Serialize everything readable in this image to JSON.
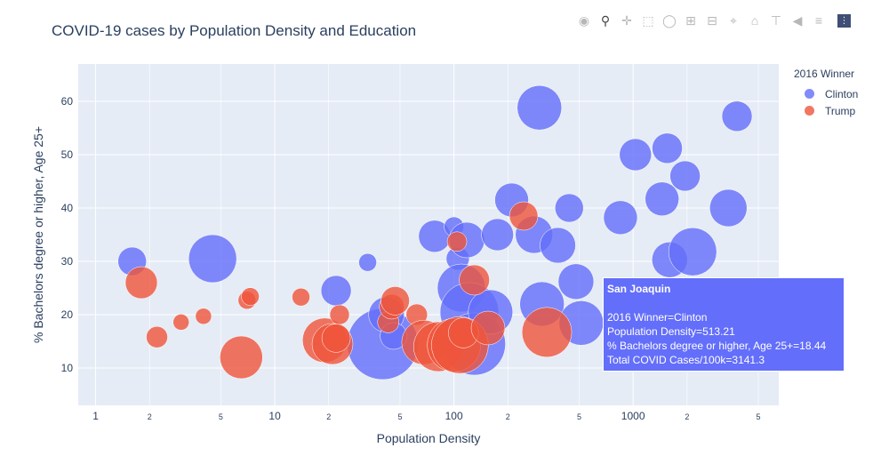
{
  "chart_data": {
    "type": "scatter",
    "title": "COVID-19 cases by Population Density and Education",
    "xlabel": "Population Density",
    "ylabel": "% Bachelors degree or higher, Age 25+",
    "x_scale": "log",
    "xlim": [
      0.8,
      6500
    ],
    "ylim": [
      3,
      67
    ],
    "x_ticks": [
      {
        "v": 1,
        "t": "1"
      },
      {
        "v": 2,
        "t": "2"
      },
      {
        "v": 5,
        "t": "5"
      },
      {
        "v": 10,
        "t": "10"
      },
      {
        "v": 20,
        "t": "2"
      },
      {
        "v": 50,
        "t": "5"
      },
      {
        "v": 100,
        "t": "100"
      },
      {
        "v": 200,
        "t": "2"
      },
      {
        "v": 500,
        "t": "5"
      },
      {
        "v": 1000,
        "t": "1000"
      },
      {
        "v": 2000,
        "t": "2"
      },
      {
        "v": 5000,
        "t": "5"
      }
    ],
    "y_ticks": [
      10,
      20,
      30,
      40,
      50,
      60
    ],
    "grid": true,
    "legend_title": "2016 Winner",
    "legend_position": "top-right",
    "series": [
      {
        "name": "Clinton",
        "color": "#636efa",
        "points": [
          {
            "x": 1.6,
            "y": 30,
            "s": 16
          },
          {
            "x": 4.5,
            "y": 30.5,
            "s": 27
          },
          {
            "x": 22,
            "y": 24.5,
            "s": 17
          },
          {
            "x": 33,
            "y": 29.8,
            "s": 10
          },
          {
            "x": 40,
            "y": 14.5,
            "s": 40
          },
          {
            "x": 42,
            "y": 20,
            "s": 20
          },
          {
            "x": 46,
            "y": 16,
            "s": 15
          },
          {
            "x": 78,
            "y": 34.7,
            "s": 18
          },
          {
            "x": 100,
            "y": 36.5,
            "s": 11
          },
          {
            "x": 105,
            "y": 30.5,
            "s": 13
          },
          {
            "x": 110,
            "y": 25,
            "s": 27
          },
          {
            "x": 118,
            "y": 34,
            "s": 20
          },
          {
            "x": 122,
            "y": 20.5,
            "s": 33
          },
          {
            "x": 130,
            "y": 14.5,
            "s": 35
          },
          {
            "x": 160,
            "y": 20.5,
            "s": 25
          },
          {
            "x": 175,
            "y": 35,
            "s": 18
          },
          {
            "x": 210,
            "y": 41.5,
            "s": 19
          },
          {
            "x": 280,
            "y": 35,
            "s": 21
          },
          {
            "x": 300,
            "y": 58.8,
            "s": 25
          },
          {
            "x": 310,
            "y": 22,
            "s": 25
          },
          {
            "x": 380,
            "y": 33,
            "s": 20
          },
          {
            "x": 440,
            "y": 40,
            "s": 16
          },
          {
            "x": 480,
            "y": 26.2,
            "s": 20
          },
          {
            "x": 513.21,
            "y": 18.44,
            "s": 25
          },
          {
            "x": 850,
            "y": 38.2,
            "s": 19
          },
          {
            "x": 1030,
            "y": 50,
            "s": 18
          },
          {
            "x": 1450,
            "y": 41.7,
            "s": 19
          },
          {
            "x": 1550,
            "y": 51.2,
            "s": 17
          },
          {
            "x": 1600,
            "y": 30.3,
            "s": 20
          },
          {
            "x": 1950,
            "y": 46,
            "s": 17
          },
          {
            "x": 2150,
            "y": 31.8,
            "s": 27
          },
          {
            "x": 3400,
            "y": 40,
            "s": 21
          },
          {
            "x": 3800,
            "y": 57.2,
            "s": 17
          }
        ]
      },
      {
        "name": "Trump",
        "color": "#ef553b",
        "points": [
          {
            "x": 1.8,
            "y": 26,
            "s": 18
          },
          {
            "x": 2.2,
            "y": 15.8,
            "s": 12
          },
          {
            "x": 3,
            "y": 18.6,
            "s": 9
          },
          {
            "x": 4,
            "y": 19.7,
            "s": 9
          },
          {
            "x": 6.5,
            "y": 12,
            "s": 24
          },
          {
            "x": 7,
            "y": 22.7,
            "s": 10
          },
          {
            "x": 7.3,
            "y": 23.4,
            "s": 10
          },
          {
            "x": 14,
            "y": 23.3,
            "s": 10
          },
          {
            "x": 19,
            "y": 15.2,
            "s": 25
          },
          {
            "x": 21,
            "y": 14.5,
            "s": 23
          },
          {
            "x": 22,
            "y": 15.6,
            "s": 16
          },
          {
            "x": 23,
            "y": 20,
            "s": 11
          },
          {
            "x": 43,
            "y": 18.6,
            "s": 12
          },
          {
            "x": 45,
            "y": 21.5,
            "s": 14
          },
          {
            "x": 47,
            "y": 22.6,
            "s": 16
          },
          {
            "x": 62,
            "y": 20,
            "s": 12
          },
          {
            "x": 68,
            "y": 14.8,
            "s": 25
          },
          {
            "x": 82,
            "y": 14,
            "s": 28
          },
          {
            "x": 100,
            "y": 14.3,
            "s": 30
          },
          {
            "x": 104,
            "y": 33.7,
            "s": 11
          },
          {
            "x": 108,
            "y": 14.3,
            "s": 32
          },
          {
            "x": 113,
            "y": 16.6,
            "s": 17
          },
          {
            "x": 130,
            "y": 26.5,
            "s": 17
          },
          {
            "x": 155,
            "y": 17.5,
            "s": 19
          },
          {
            "x": 245,
            "y": 38.5,
            "s": 16
          },
          {
            "x": 330,
            "y": 16.7,
            "s": 28
          }
        ]
      }
    ]
  },
  "hover": {
    "county": "San Joaquin",
    "line1": "2016 Winner=Clinton",
    "line2": "Population Density=513.21",
    "line3": "% Bachelors degree or higher, Age 25+=18.44",
    "line4": "Total COVID Cases/100k=3141.3"
  },
  "modebar": {
    "icons": [
      "camera-icon",
      "zoom-icon",
      "pan-icon",
      "box-select-icon",
      "lasso-icon",
      "zoom-in-icon",
      "zoom-out-icon",
      "autoscale-icon",
      "reset-axes-icon",
      "spike-lines-icon",
      "hover-closest-icon",
      "hover-compare-icon",
      "plotly-logo-icon"
    ]
  }
}
